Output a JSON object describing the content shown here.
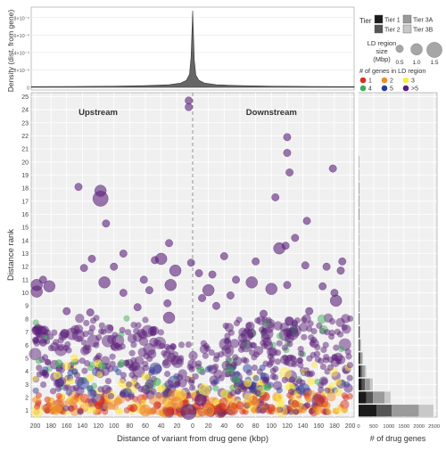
{
  "chart_data": [
    {
      "panel": "top-density",
      "type": "area",
      "ylabel": "Density (dist. from gene)",
      "y_tick_labels": [
        "0",
        "2×10⁻⁴",
        "4×10⁻⁴",
        "6×10⁻⁴",
        "8×10⁻⁴"
      ],
      "xlim": [
        -205,
        205
      ],
      "ylim": [
        0,
        0.0009
      ],
      "x": [
        -205,
        -150,
        -100,
        -60,
        -30,
        -15,
        -8,
        -4,
        -2,
        0,
        2,
        4,
        8,
        15,
        30,
        60,
        100,
        150,
        205
      ],
      "values": [
        8e-06,
        1e-05,
        1.4e-05,
        2e-05,
        3e-05,
        5e-05,
        8e-05,
        0.00015,
        0.00035,
        0.00088,
        0.00032,
        0.00014,
        8e-05,
        5e-05,
        3e-05,
        2e-05,
        1.4e-05,
        1e-05,
        8e-06
      ],
      "fill": "#666666"
    },
    {
      "panel": "main-scatter",
      "type": "scatter",
      "xlabel": "Distance of variant from drug gene (kbp)",
      "ylabel": "Distance rank",
      "xlim": [
        -205,
        205
      ],
      "ylim": [
        0.5,
        25.3
      ],
      "x_tick_values": [
        -200,
        -180,
        -160,
        -140,
        -120,
        -100,
        -80,
        -60,
        -40,
        -20,
        0,
        20,
        40,
        60,
        80,
        100,
        120,
        140,
        160,
        180,
        200
      ],
      "x_tick_labels": [
        "200",
        "180",
        "160",
        "140",
        "120",
        "100",
        "80",
        "60",
        "40",
        "20",
        "0",
        "20",
        "40",
        "60",
        "80",
        "100",
        "120",
        "140",
        "160",
        "180",
        "200"
      ],
      "y_ticks": [
        1,
        2,
        3,
        4,
        5,
        6,
        7,
        8,
        9,
        10,
        11,
        12,
        13,
        14,
        15,
        16,
        17,
        18,
        19,
        20,
        21,
        22,
        23,
        24,
        25
      ],
      "annotations": [
        {
          "text": "Upstream",
          "x": -120,
          "y": 23.6
        },
        {
          "text": "Downstream",
          "x": 100,
          "y": 23.6
        }
      ],
      "size_legend_mbp": [
        0.5,
        1.0,
        1.5
      ],
      "points": [
        {
          "x": -5,
          "y": 24.7,
          "s": 0.5,
          "c": 5
        },
        {
          "x": -5,
          "y": 24.2,
          "s": 0.5,
          "c": 5
        },
        {
          "x": -145,
          "y": 18.1,
          "s": 0.5,
          "c": 5
        },
        {
          "x": -117,
          "y": 17.8,
          "s": 1.0,
          "c": 5
        },
        {
          "x": -117,
          "y": 17.2,
          "s": 1.5,
          "c": 5
        },
        {
          "x": -110,
          "y": 15.3,
          "s": 0.5,
          "c": 5
        },
        {
          "x": 120,
          "y": 21.9,
          "s": 0.5,
          "c": 5
        },
        {
          "x": 120,
          "y": 20.7,
          "s": 0.5,
          "c": 5
        },
        {
          "x": 178,
          "y": 19.5,
          "s": 0.5,
          "c": 5
        },
        {
          "x": 123,
          "y": 19.2,
          "s": 0.5,
          "c": 5
        },
        {
          "x": 105,
          "y": 17.3,
          "s": 0.5,
          "c": 5
        },
        {
          "x": 145,
          "y": 15.5,
          "s": 0.5,
          "c": 5
        },
        {
          "x": 130,
          "y": 14.2,
          "s": 0.5,
          "c": 5
        },
        {
          "x": 118,
          "y": 13.6,
          "s": 0.5,
          "c": 5
        },
        {
          "x": -30,
          "y": 13.8,
          "s": 0.5,
          "c": 5
        },
        {
          "x": -88,
          "y": 13.0,
          "s": 0.5,
          "c": 5
        },
        {
          "x": -100,
          "y": 12.0,
          "s": 0.5,
          "c": 5
        },
        {
          "x": -48,
          "y": 12.5,
          "s": 0.5,
          "c": 5
        },
        {
          "x": -2,
          "y": 12.3,
          "s": 0.5,
          "c": 5
        },
        {
          "x": -40,
          "y": 12.6,
          "s": 1.0,
          "c": 5
        },
        {
          "x": -22,
          "y": 11.7,
          "s": 1.0,
          "c": 5
        },
        {
          "x": -62,
          "y": 11.0,
          "s": 0.5,
          "c": 5
        },
        {
          "x": -128,
          "y": 12.6,
          "s": 0.5,
          "c": 5
        },
        {
          "x": -138,
          "y": 11.9,
          "s": 0.5,
          "c": 5
        },
        {
          "x": -190,
          "y": 11.0,
          "s": 0.5,
          "c": 5
        },
        {
          "x": -198,
          "y": 10.6,
          "s": 1.0,
          "c": 5
        },
        {
          "x": -182,
          "y": 10.5,
          "s": 1.0,
          "c": 5
        },
        {
          "x": -198,
          "y": 10.1,
          "s": 1.0,
          "c": 5
        },
        {
          "x": -112,
          "y": 10.8,
          "s": 1.0,
          "c": 5
        },
        {
          "x": -88,
          "y": 10.0,
          "s": 0.5,
          "c": 5
        },
        {
          "x": -28,
          "y": 10.6,
          "s": 1.0,
          "c": 5
        },
        {
          "x": -55,
          "y": 10.2,
          "s": 0.5,
          "c": 5
        },
        {
          "x": -32,
          "y": 9.2,
          "s": 0.5,
          "c": 5
        },
        {
          "x": -70,
          "y": 8.9,
          "s": 0.5,
          "c": 5
        },
        {
          "x": 8,
          "y": 11.5,
          "s": 0.5,
          "c": 5
        },
        {
          "x": 25,
          "y": 11.4,
          "s": 0.5,
          "c": 5
        },
        {
          "x": 40,
          "y": 12.8,
          "s": 0.5,
          "c": 5
        },
        {
          "x": 55,
          "y": 11.0,
          "s": 0.5,
          "c": 5
        },
        {
          "x": 80,
          "y": 12.4,
          "s": 0.5,
          "c": 5
        },
        {
          "x": 110,
          "y": 13.4,
          "s": 1.0,
          "c": 5
        },
        {
          "x": 143,
          "y": 12.1,
          "s": 0.5,
          "c": 5
        },
        {
          "x": 170,
          "y": 12.0,
          "s": 0.5,
          "c": 5
        },
        {
          "x": 190,
          "y": 12.4,
          "s": 0.5,
          "c": 5
        },
        {
          "x": 188,
          "y": 11.7,
          "s": 0.5,
          "c": 5
        },
        {
          "x": 75,
          "y": 10.8,
          "s": 1.0,
          "c": 5
        },
        {
          "x": 100,
          "y": 10.3,
          "s": 1.0,
          "c": 5
        },
        {
          "x": 120,
          "y": 10.6,
          "s": 0.5,
          "c": 5
        },
        {
          "x": 165,
          "y": 10.5,
          "s": 0.5,
          "c": 5
        },
        {
          "x": 180,
          "y": 10.0,
          "s": 0.5,
          "c": 5
        },
        {
          "x": 182,
          "y": 9.4,
          "s": 1.0,
          "c": 5
        },
        {
          "x": 20,
          "y": 10.2,
          "s": 1.0,
          "c": 5
        },
        {
          "x": 12,
          "y": 9.6,
          "s": 0.5,
          "c": 5
        },
        {
          "x": 48,
          "y": 9.8,
          "s": 0.5,
          "c": 5
        },
        {
          "x": 30,
          "y": 9.0,
          "s": 0.5,
          "c": 5
        },
        {
          "x": 90,
          "y": 8.4,
          "s": 0.5,
          "c": 5
        },
        {
          "x": 148,
          "y": 8.6,
          "s": 0.5,
          "c": 5
        },
        {
          "x": -130,
          "y": 8.5,
          "s": 0.5,
          "c": 5
        },
        {
          "x": -160,
          "y": 8.6,
          "s": 0.5,
          "c": 5
        },
        {
          "x": -30,
          "y": 8.1,
          "s": 1.0,
          "c": 5
        },
        {
          "x": -190,
          "y": 6.2,
          "s": 0.5,
          "c": 5
        },
        {
          "x": -150,
          "y": 5.0,
          "s": 0.5,
          "c": 3
        },
        {
          "x": -160,
          "y": 4.4,
          "s": 0.5,
          "c": 3
        },
        {
          "x": -172,
          "y": 3.7,
          "s": 0.5,
          "c": 3
        },
        {
          "x": -120,
          "y": 4.6,
          "s": 0.5,
          "c": 3
        },
        {
          "x": -130,
          "y": 3.5,
          "s": 0.5,
          "c": 3
        },
        {
          "x": -90,
          "y": 3.1,
          "s": 0.5,
          "c": 3
        },
        {
          "x": -60,
          "y": 3.6,
          "s": 0.5,
          "c": 3
        },
        {
          "x": -40,
          "y": 2.7,
          "s": 0.5,
          "c": 3
        },
        {
          "x": -15,
          "y": 2.2,
          "s": 1.0,
          "c": 3
        },
        {
          "x": 15,
          "y": 2.6,
          "s": 1.0,
          "c": 3
        },
        {
          "x": 40,
          "y": 2.3,
          "s": 0.5,
          "c": 3
        },
        {
          "x": 70,
          "y": 3.1,
          "s": 0.5,
          "c": 3
        },
        {
          "x": 110,
          "y": 2.0,
          "s": 0.5,
          "c": 3
        },
        {
          "x": 150,
          "y": 3.2,
          "s": 0.5,
          "c": 3
        },
        {
          "x": 185,
          "y": 2.4,
          "s": 0.5,
          "c": 3
        },
        {
          "x": -170,
          "y": 4.6,
          "s": 0.5,
          "c": 4
        },
        {
          "x": -115,
          "y": 4.4,
          "s": 0.5,
          "c": 4
        },
        {
          "x": -90,
          "y": 4.6,
          "s": 0.5,
          "c": 4
        },
        {
          "x": -45,
          "y": 3.2,
          "s": 0.5,
          "c": 4
        },
        {
          "x": 10,
          "y": 4.1,
          "s": 0.5,
          "c": 4
        },
        {
          "x": 55,
          "y": 3.4,
          "s": 0.5,
          "c": 4
        },
        {
          "x": 95,
          "y": 2.8,
          "s": 0.5,
          "c": 4
        },
        {
          "x": -120,
          "y": 1.4,
          "s": 0.5,
          "c": 1
        },
        {
          "x": -75,
          "y": 1.2,
          "s": 0.5,
          "c": 1
        },
        {
          "x": -45,
          "y": 1.4,
          "s": 0.5,
          "c": 1
        },
        {
          "x": -28,
          "y": 1.0,
          "s": 0.5,
          "c": 1
        },
        {
          "x": 5,
          "y": 1.3,
          "s": 0.5,
          "c": 1
        },
        {
          "x": 30,
          "y": 1.1,
          "s": 0.5,
          "c": 1
        },
        {
          "x": 60,
          "y": 1.4,
          "s": 0.5,
          "c": 1
        },
        {
          "x": 100,
          "y": 1.2,
          "s": 0.5,
          "c": 1
        },
        {
          "x": 130,
          "y": 1.5,
          "s": 0.5,
          "c": 1
        },
        {
          "x": -170,
          "y": 1.2,
          "s": 0.5,
          "c": 2
        },
        {
          "x": -150,
          "y": 1.8,
          "s": 0.5,
          "c": 2
        },
        {
          "x": -95,
          "y": 1.7,
          "s": 0.5,
          "c": 2
        },
        {
          "x": -60,
          "y": 1.0,
          "s": 1.0,
          "c": 2
        },
        {
          "x": -20,
          "y": 1.6,
          "s": 1.0,
          "c": 2
        },
        {
          "x": 20,
          "y": 1.0,
          "s": 1.0,
          "c": 2
        },
        {
          "x": 80,
          "y": 1.6,
          "s": 0.5,
          "c": 2
        },
        {
          "x": 140,
          "y": 1.1,
          "s": 0.5,
          "c": 2
        },
        {
          "x": 170,
          "y": 1.4,
          "s": 0.5,
          "c": 2
        },
        {
          "x": -5,
          "y": 0.9,
          "s": 1.5,
          "c": 5
        },
        {
          "x": 10,
          "y": 1.8,
          "s": 1.0,
          "c": 5
        }
      ],
      "dense_band_note": "ranks 1–8 between -200 and 200 kbp are heavily overplotted"
    },
    {
      "panel": "right-histogram",
      "type": "bar",
      "xlabel": "# of drug genes",
      "x_tick_values": [
        0,
        500,
        1000,
        1500,
        2000,
        2500
      ],
      "x_tick_labels": [
        "0",
        "500",
        "1000",
        "1500",
        "2000",
        "2500"
      ],
      "xlim": [
        0,
        2600
      ],
      "orientation": "horizontal",
      "categories": [
        1,
        2,
        3,
        4,
        5,
        6,
        7,
        8,
        9,
        10,
        11,
        12,
        13,
        14,
        15,
        16,
        17,
        18,
        19,
        20,
        21,
        22,
        23,
        24,
        25
      ],
      "series": [
        {
          "name": "Tier 1",
          "values": [
            600,
            250,
            110,
            60,
            35,
            20,
            12,
            8,
            5,
            4,
            3,
            2,
            2,
            1,
            1,
            1,
            1,
            1,
            0,
            0,
            0,
            0,
            0,
            0,
            0
          ]
        },
        {
          "name": "Tier 2",
          "values": [
            500,
            230,
            100,
            55,
            32,
            18,
            11,
            7,
            5,
            3,
            3,
            2,
            1,
            1,
            1,
            1,
            0,
            0,
            0,
            0,
            0,
            0,
            0,
            0,
            0
          ]
        },
        {
          "name": "Tier 3A",
          "values": [
            900,
            380,
            170,
            90,
            50,
            30,
            18,
            12,
            8,
            6,
            4,
            3,
            2,
            2,
            1,
            1,
            1,
            1,
            1,
            1,
            0,
            0,
            0,
            0,
            0
          ]
        },
        {
          "name": "Tier 3B",
          "values": [
            480,
            200,
            90,
            50,
            28,
            16,
            10,
            6,
            4,
            3,
            2,
            2,
            1,
            1,
            1,
            0,
            0,
            0,
            0,
            0,
            0,
            0,
            0,
            0,
            0
          ]
        }
      ]
    }
  ],
  "legend": {
    "tier_title": "Tier",
    "tiers": [
      {
        "label": "Tier 1",
        "color": "#1a1a1a"
      },
      {
        "label": "Tier 2",
        "color": "#555555"
      },
      {
        "label": "Tier 3A",
        "color": "#9a9a9a"
      },
      {
        "label": "Tier 3B",
        "color": "#c8c8c8"
      }
    ],
    "ld_title_1": "LD region",
    "ld_title_2": "size",
    "ld_title_3": "(Mbp)",
    "ld_sizes": [
      "0.5",
      "1.0",
      "1.5"
    ],
    "genes_title": "# of genes in LD region",
    "genes": [
      {
        "label": "1",
        "color": "#d7301f"
      },
      {
        "label": "2",
        "color": "#f08a25"
      },
      {
        "label": "3",
        "color": "#ffe745"
      },
      {
        "label": "4",
        "color": "#41ab5d"
      },
      {
        "label": "5",
        "color": "#2c3e99"
      },
      {
        "label": ">5",
        "color": "#5b1f7a"
      }
    ]
  }
}
